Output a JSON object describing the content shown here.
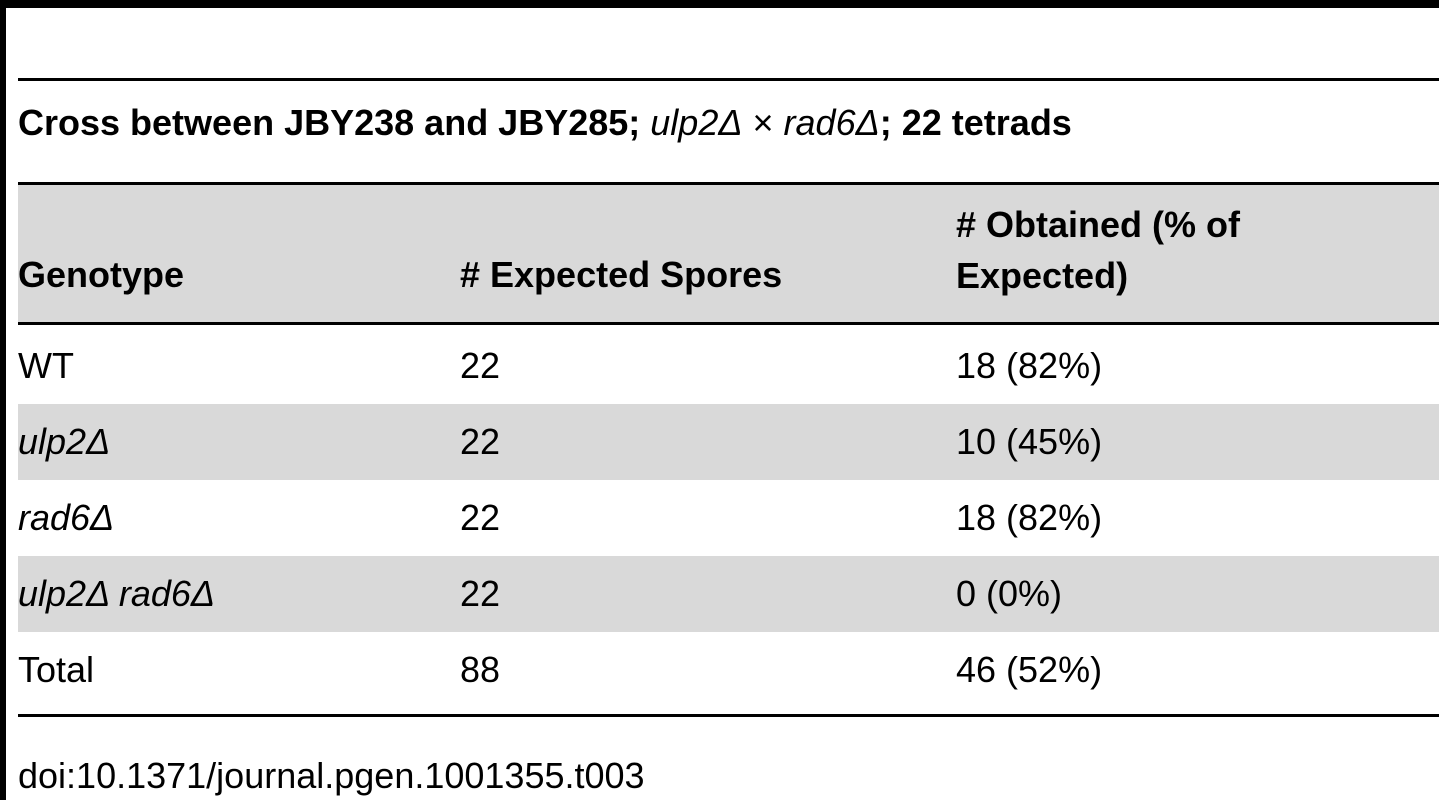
{
  "caption": {
    "prefix": "Cross between JBY238 and JBY285; ",
    "cross_a": "ulp2Δ",
    "times": " × ",
    "cross_b": "rad6Δ",
    "suffix": "; 22 tetrads"
  },
  "table": {
    "headers": {
      "genotype": "Genotype",
      "expected": "# Expected Spores",
      "obtained_line1": "# Obtained (% of",
      "obtained_line2": "Expected)"
    },
    "rows": [
      {
        "genotype": "WT",
        "expected": "22",
        "obtained": "18 (82%)"
      },
      {
        "genotype": "ulp2Δ",
        "expected": "22",
        "obtained": "10 (45%)"
      },
      {
        "genotype": "rad6Δ",
        "expected": "22",
        "obtained": "18 (82%)"
      },
      {
        "genotype": "ulp2Δ rad6Δ",
        "expected": "22",
        "obtained": "0 (0%)"
      },
      {
        "genotype": "Total",
        "expected": "88",
        "obtained": "46 (52%)"
      }
    ]
  },
  "doi": "doi:10.1371/journal.pgen.1001355.t003"
}
